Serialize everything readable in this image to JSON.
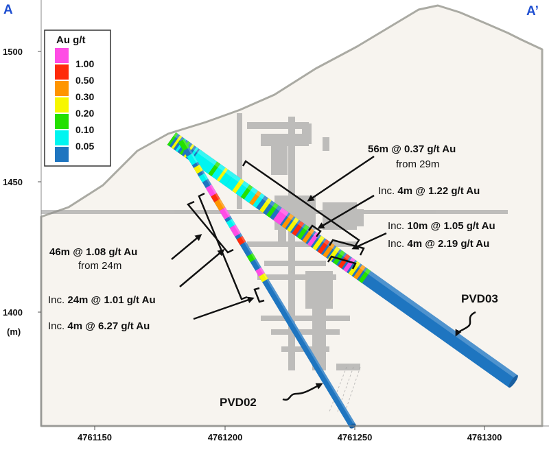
{
  "section": {
    "left_label": "A",
    "right_label": "A’"
  },
  "elevation_axis": {
    "ticks": [
      "1500",
      "1450",
      "1400"
    ],
    "unit": "(m)"
  },
  "easting_axis": {
    "ticks": [
      "4761150",
      "4761200",
      "4761250",
      "4761300"
    ]
  },
  "legend": {
    "title": "Au g/t",
    "items": [
      {
        "label": "1.00",
        "color": "#ff4ce5"
      },
      {
        "label": "0.50",
        "color": "#ff2a0a"
      },
      {
        "label": "0.30",
        "color": "#ff9500"
      },
      {
        "label": "0.20",
        "color": "#f7f700"
      },
      {
        "label": "0.10",
        "color": "#24e000"
      },
      {
        "label": "0.05",
        "color": "#00f5f0"
      },
      {
        "label": "",
        "color": "#1e75c0"
      }
    ]
  },
  "holes": [
    {
      "id": "PVD03",
      "label": "PVD03"
    },
    {
      "id": "PVD02",
      "label": "PVD02"
    }
  ],
  "annotations": {
    "pvd03_main": {
      "value": "56m @ 0.37 g/t Au",
      "sub": "from 29m"
    },
    "pvd03_inc1": {
      "prefix": "Inc. ",
      "value": "4m @ 1.22 g/t Au"
    },
    "pvd03_inc2": {
      "prefix": "Inc. ",
      "value": "10m @ 1.05 g/t Au"
    },
    "pvd03_inc3": {
      "prefix": "Inc. ",
      "value": "4m @ 2.19 g/t Au"
    },
    "pvd02_main": {
      "value": "46m @ 1.08 g/t Au",
      "sub": "from 24m"
    },
    "pvd02_inc1": {
      "prefix": "Inc. ",
      "value": "24m @ 1.01 g/t Au"
    },
    "pvd02_inc2": {
      "prefix": "Inc. ",
      "value": "4m @ 6.27 g/t Au"
    }
  },
  "colors": {
    "label_blue": "#1f4fd1",
    "terrain_fill": "#f7f4ef",
    "terrain_line": "#a9a9a2",
    "workings": "#8f8f8f"
  }
}
